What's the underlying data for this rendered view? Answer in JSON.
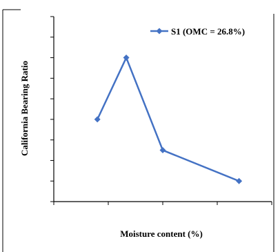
{
  "chart_data": {
    "type": "line",
    "title": "",
    "xlabel": "Moisture content (%)",
    "ylabel": "California Bearing Ratio",
    "xlim": [
      0,
      4
    ],
    "ylim": [
      0,
      9
    ],
    "x_tick_labels": [],
    "y_tick_labels": [],
    "grid": false,
    "legend": "top-right",
    "series": [
      {
        "name": "S1 (OMC = 26.8%)",
        "color": "#4472C4",
        "marker": "diamond",
        "x": [
          0.8,
          1.33,
          2.0,
          3.4
        ],
        "y": [
          4.0,
          7.0,
          2.5,
          1.0
        ]
      }
    ]
  }
}
